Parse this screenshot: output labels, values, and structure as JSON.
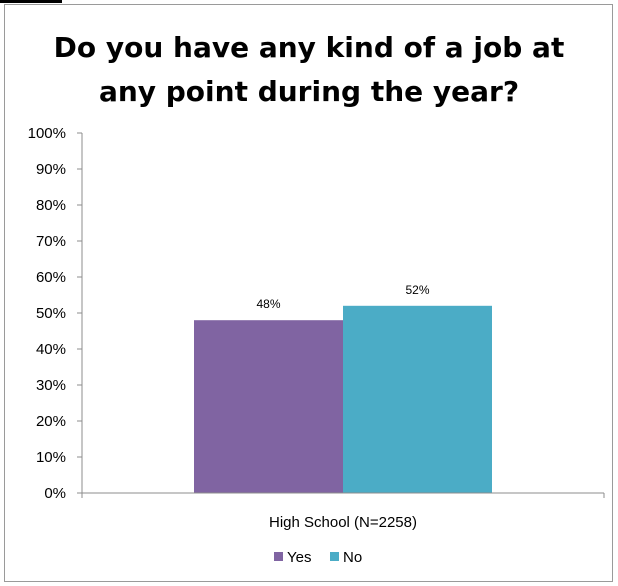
{
  "chart_data": {
    "type": "bar",
    "title": "Do you have any kind of a job at any point during the year?",
    "title_lines": [
      "Do you have any kind of a job at",
      "any point during the year?"
    ],
    "categories": [
      "High School (N=2258)"
    ],
    "series": [
      {
        "name": "Yes",
        "values": [
          48
        ],
        "data_label": "48%",
        "color": "#8064A2"
      },
      {
        "name": "No",
        "values": [
          52
        ],
        "data_label": "52%",
        "color": "#4BACC6"
      }
    ],
    "ylim": [
      0,
      100
    ],
    "yticks": [
      0,
      10,
      20,
      30,
      40,
      50,
      60,
      70,
      80,
      90,
      100
    ],
    "ytick_labels": [
      "0%",
      "10%",
      "20%",
      "30%",
      "40%",
      "50%",
      "60%",
      "70%",
      "80%",
      "90%",
      "100%"
    ],
    "grid": false,
    "legend_position": "bottom"
  }
}
